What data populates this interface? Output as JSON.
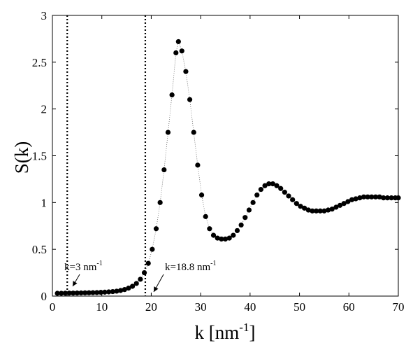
{
  "chart_data": {
    "type": "scatter",
    "xlabel": "k [nm",
    "xlabel_sup": "-1",
    "xlabel_tail": "]",
    "ylabel": "S(k)",
    "xlim": [
      0,
      70
    ],
    "ylim": [
      0,
      3
    ],
    "xticks": [
      "0",
      "10",
      "20",
      "30",
      "40",
      "50",
      "60",
      "70"
    ],
    "yticks": [
      "0",
      "0.5",
      "1",
      "1.5",
      "2",
      "2.5",
      "3"
    ],
    "grid": false,
    "marker_color": "#000000",
    "connector_style": "dotted",
    "vlines": [
      {
        "x": 3,
        "style": "dotted"
      },
      {
        "x": 18.8,
        "style": "dotted"
      }
    ],
    "annotations": [
      {
        "label": "k=3 nm",
        "sup": "-1",
        "x": 3,
        "y": 0.03
      },
      {
        "label": "k=18.8 nm",
        "sup": "-1",
        "x": 18.8,
        "y": 0.03
      }
    ],
    "series": [
      {
        "x": [
          1.0,
          1.8,
          2.6,
          3.4,
          4.2,
          5.0,
          5.8,
          6.6,
          7.4,
          8.2,
          9.0,
          9.8,
          10.6,
          11.4,
          12.2,
          13.0,
          13.8,
          14.6,
          15.4,
          16.2,
          17.0,
          17.8,
          18.6,
          19.4,
          20.2,
          21.0,
          21.8,
          22.6,
          23.4,
          24.2,
          25.0,
          25.5,
          26.2,
          27.0,
          27.8,
          28.6,
          29.4,
          30.2,
          31.0,
          31.8,
          32.6,
          33.4,
          34.2,
          35.0,
          35.8,
          36.6,
          37.4,
          38.2,
          39.0,
          39.8,
          40.6,
          41.4,
          42.2,
          43.0,
          43.8,
          44.6,
          45.4,
          46.2,
          47.0,
          47.8,
          48.6,
          49.4,
          50.2,
          51.0,
          51.8,
          52.6,
          53.4,
          54.2,
          55.0,
          55.8,
          56.6,
          57.4,
          58.2,
          59.0,
          59.8,
          60.6,
          61.4,
          62.2,
          63.0,
          63.8,
          64.6,
          65.4,
          66.2,
          67.0,
          67.8,
          68.6,
          69.4,
          70.0
        ],
        "y": [
          0.03,
          0.03,
          0.031,
          0.032,
          0.032,
          0.033,
          0.034,
          0.035,
          0.036,
          0.037,
          0.038,
          0.04,
          0.042,
          0.045,
          0.048,
          0.053,
          0.06,
          0.07,
          0.085,
          0.105,
          0.135,
          0.18,
          0.25,
          0.35,
          0.5,
          0.72,
          1.0,
          1.35,
          1.75,
          2.15,
          2.6,
          2.72,
          2.62,
          2.4,
          2.1,
          1.75,
          1.4,
          1.08,
          0.85,
          0.72,
          0.65,
          0.62,
          0.61,
          0.61,
          0.62,
          0.65,
          0.7,
          0.76,
          0.84,
          0.92,
          1.0,
          1.08,
          1.14,
          1.18,
          1.2,
          1.2,
          1.18,
          1.15,
          1.11,
          1.07,
          1.03,
          0.99,
          0.96,
          0.94,
          0.92,
          0.91,
          0.91,
          0.91,
          0.91,
          0.92,
          0.93,
          0.95,
          0.97,
          0.99,
          1.01,
          1.03,
          1.04,
          1.05,
          1.06,
          1.06,
          1.06,
          1.06,
          1.06,
          1.05,
          1.05,
          1.05,
          1.05,
          1.05
        ]
      }
    ]
  }
}
